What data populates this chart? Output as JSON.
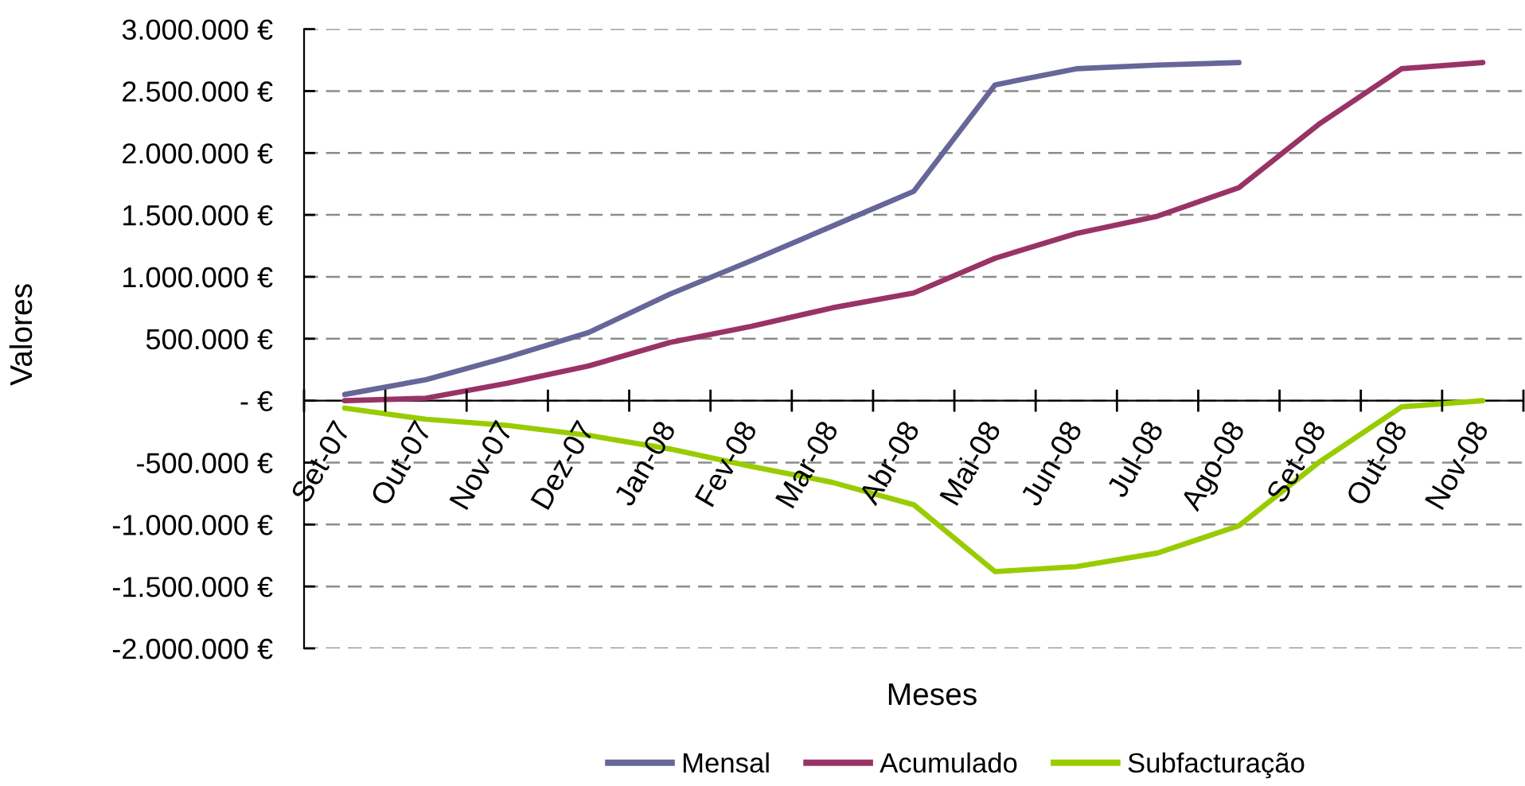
{
  "chart_data": {
    "type": "line",
    "xlabel": "Meses",
    "ylabel": "Valores",
    "categories": [
      "Set-07",
      "Out-07",
      "Nov-07",
      "Dez-07",
      "Jan-08",
      "Fev-08",
      "Mar-08",
      "Abr-08",
      "Mai-08",
      "Jun-08",
      "Jul-08",
      "Ago-08",
      "Set-08",
      "Out-08",
      "Nov-08"
    ],
    "series": [
      {
        "name": "Mensal",
        "color": "#666699",
        "values": [
          50000,
          170000,
          350000,
          550000,
          860000,
          1130000,
          1410000,
          1690000,
          2550000,
          2680000,
          2710000,
          2730000,
          null,
          null,
          null
        ]
      },
      {
        "name": "Acumulado",
        "color": "#993366",
        "values": [
          0,
          20000,
          140000,
          280000,
          470000,
          600000,
          750000,
          870000,
          1150000,
          1350000,
          1490000,
          1720000,
          2240000,
          2680000,
          2730000
        ]
      },
      {
        "name": "Subfacturação",
        "color": "#99cc00",
        "values": [
          -60000,
          -150000,
          -200000,
          -280000,
          -390000,
          -530000,
          -660000,
          -840000,
          -1380000,
          -1340000,
          -1230000,
          -1010000,
          -490000,
          -50000,
          0
        ]
      }
    ],
    "ylim": [
      -2000000,
      3000000
    ],
    "yticks": [
      {
        "value": 3000000,
        "label": "3.000.000 €"
      },
      {
        "value": 2500000,
        "label": "2.500.000 €"
      },
      {
        "value": 2000000,
        "label": "2.000.000 €"
      },
      {
        "value": 1500000,
        "label": "1.500.000 €"
      },
      {
        "value": 1000000,
        "label": "1.000.000 €"
      },
      {
        "value": 500000,
        "label": "500.000 €"
      },
      {
        "value": 0,
        "label": "- €"
      },
      {
        "value": -500000,
        "label": "-500.000 €"
      },
      {
        "value": -1000000,
        "label": "-1.000.000 €"
      },
      {
        "value": -1500000,
        "label": "-1.500.000 €"
      },
      {
        "value": -2000000,
        "label": "-2.000.000 €"
      }
    ],
    "grid": "y",
    "legend": "bottom"
  }
}
